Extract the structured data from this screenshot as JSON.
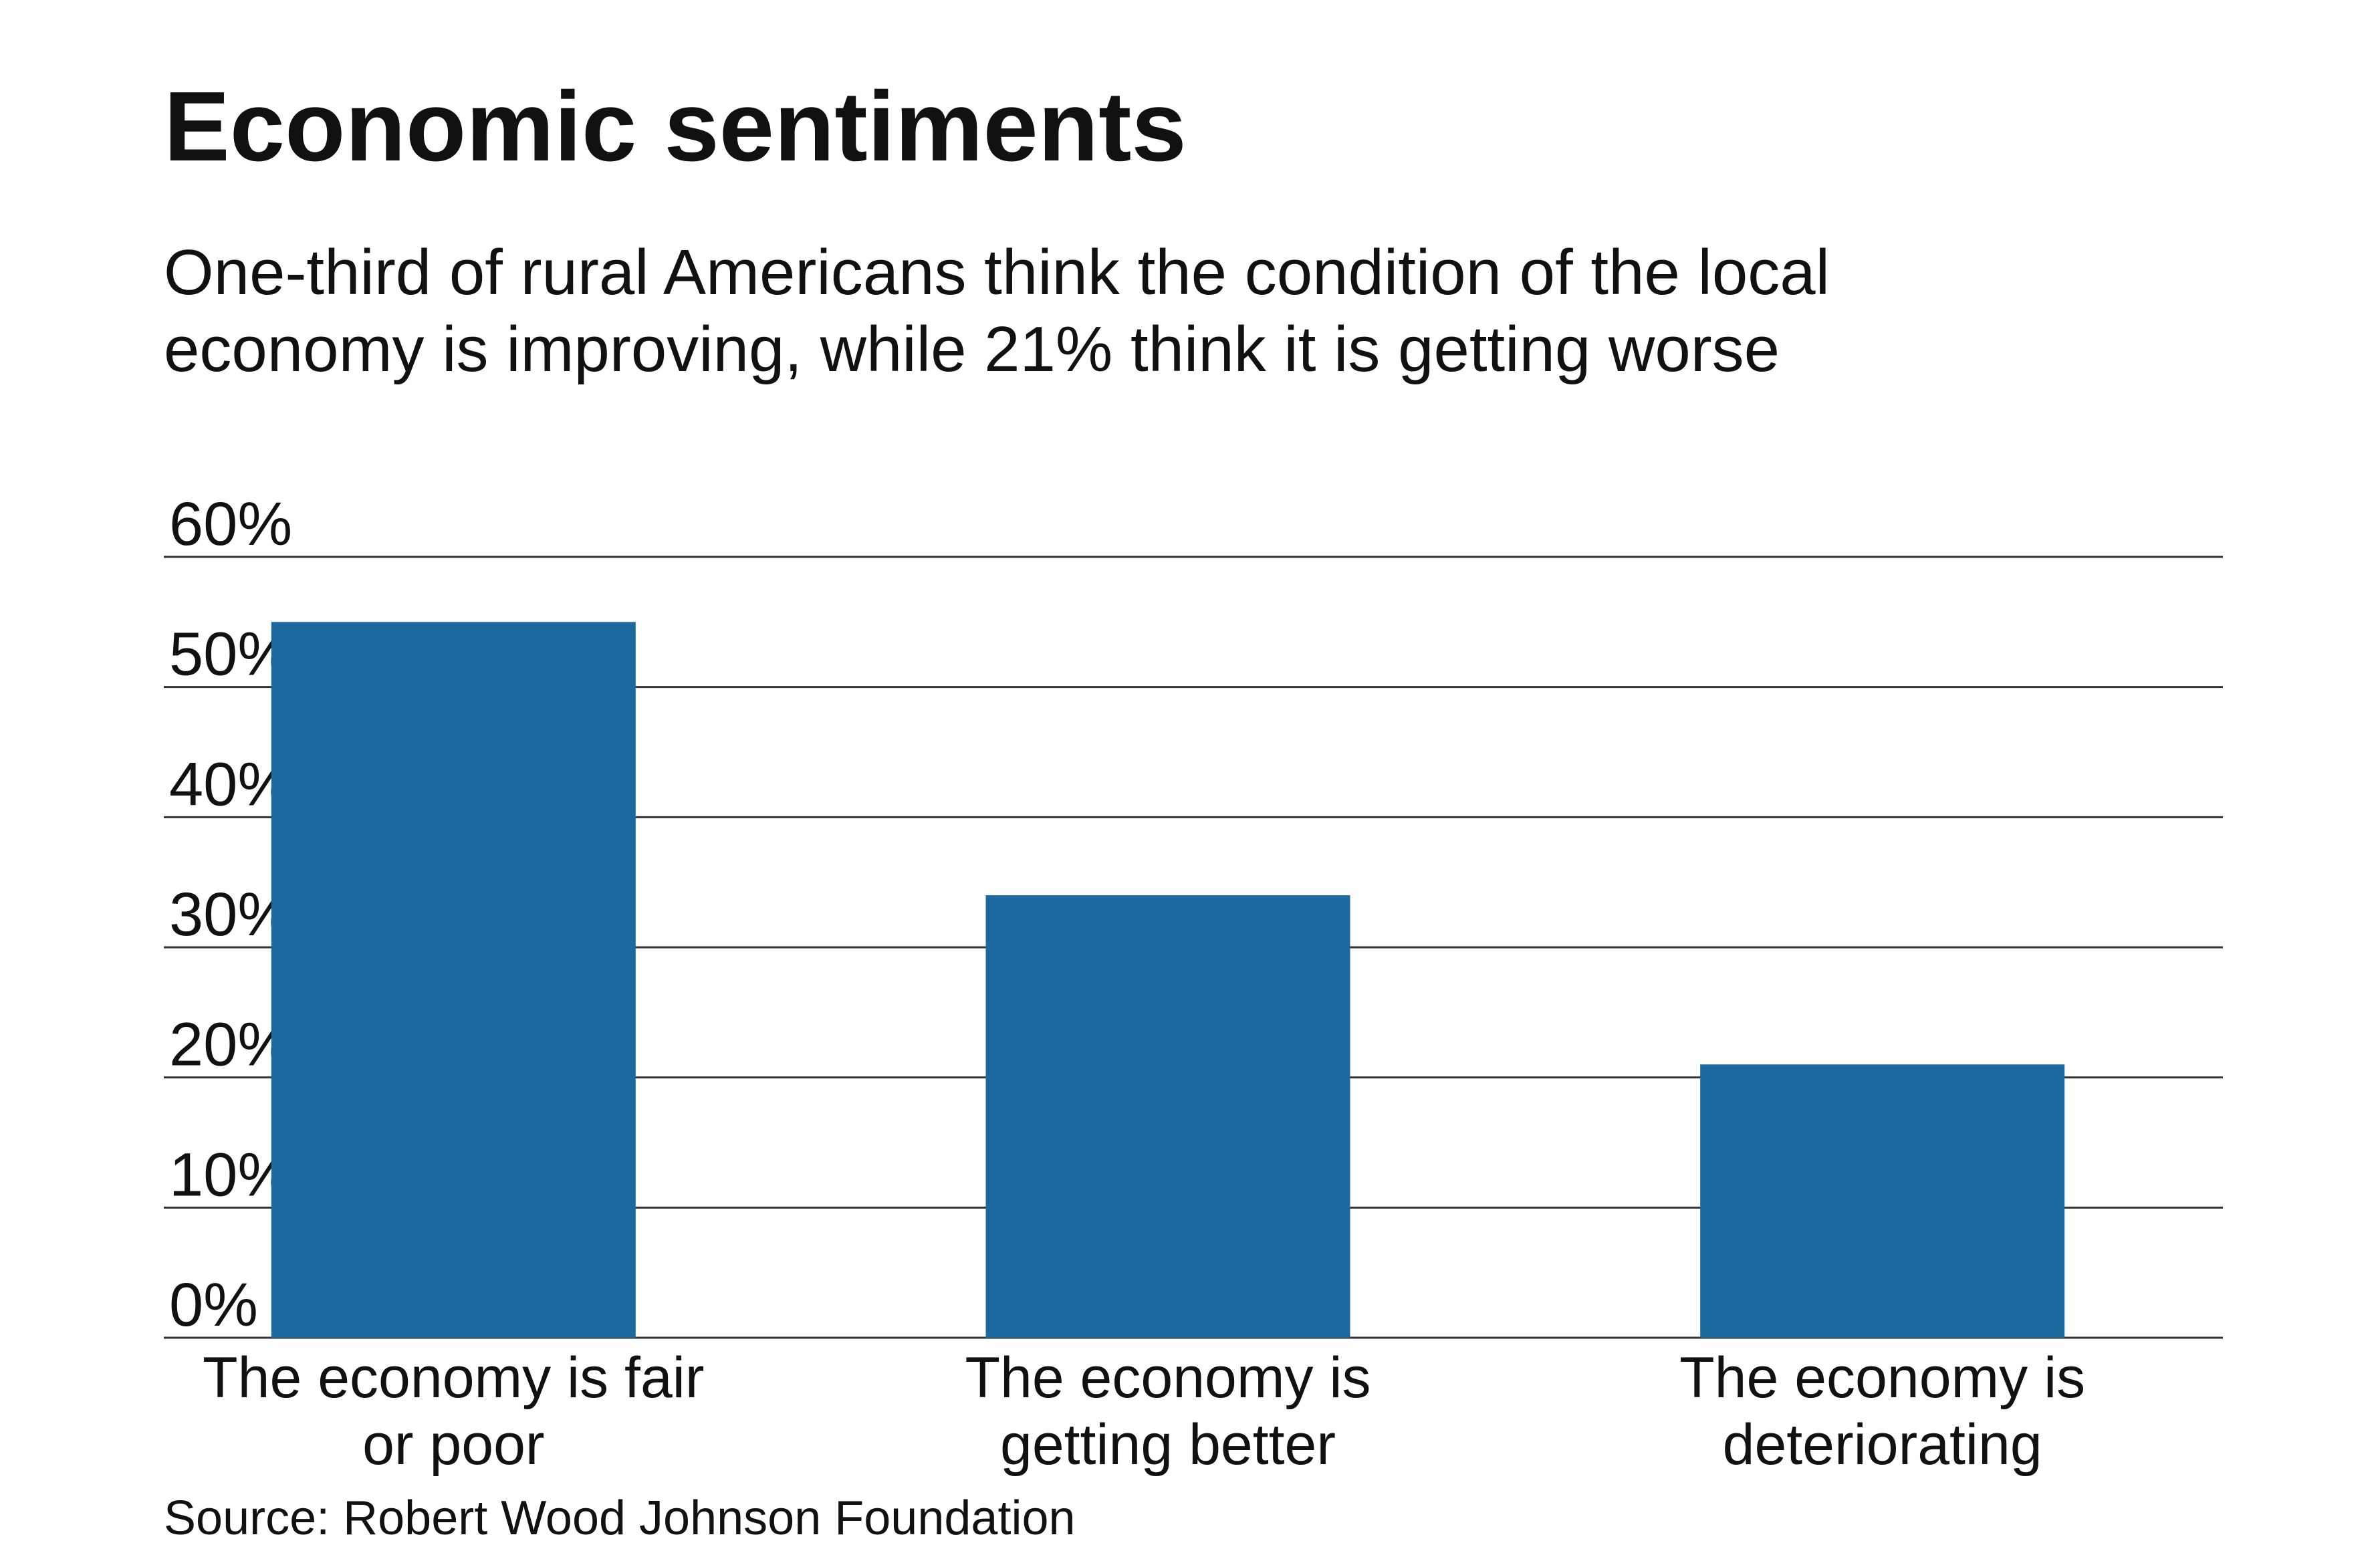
{
  "chart_data": {
    "type": "bar",
    "title": "Economic sentiments",
    "subtitle_lines": [
      "One-third of rural Americans think the condition of the local",
      "economy is improving, while 21% think it is getting worse"
    ],
    "categories": [
      [
        "The economy is fair",
        "or poor"
      ],
      [
        "The economy is",
        "getting better"
      ],
      [
        "The economy is",
        "deteriorating"
      ]
    ],
    "values": [
      55,
      34,
      21
    ],
    "ylim": [
      0,
      60
    ],
    "yticks": [
      0,
      10,
      20,
      30,
      40,
      50,
      60
    ],
    "ytick_labels": [
      "0%",
      "10%",
      "20%",
      "30%",
      "40%",
      "50%",
      "60%"
    ],
    "grid": true,
    "legend": "none",
    "source": "Source: Robert Wood Johnson Foundation",
    "colors": {
      "bar": "#1c699f",
      "grid": "#333333",
      "text": "#111111"
    }
  }
}
